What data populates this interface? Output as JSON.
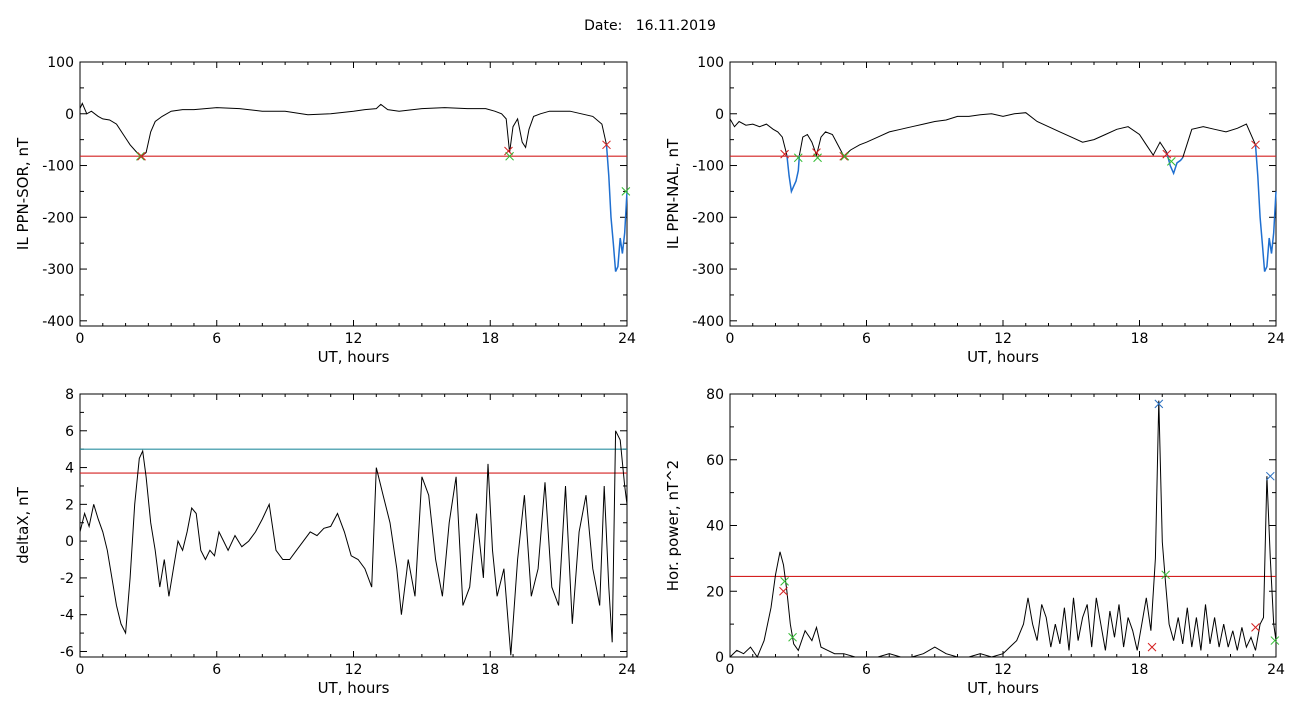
{
  "header": {
    "date_label": "Date:",
    "date_value": "16.11.2019"
  },
  "colors": {
    "trace": "#000000",
    "threshold_red": "#d42020",
    "threshold_teal": "#2a8fa0",
    "dip_blue": "#1f6fd0",
    "marker_green": "#33bb33",
    "marker_red": "#d42020",
    "marker_blue": "#2a70c0"
  },
  "chart_data": [
    {
      "type": "line",
      "ylabel": "IL PPN-SOR, nT",
      "xlabel": "UT, hours",
      "xlim": [
        0,
        24
      ],
      "ylim": [
        -410,
        100
      ],
      "xticks": [
        0,
        6,
        12,
        18,
        24
      ],
      "yticks": [
        100,
        0,
        -100,
        -200,
        -300,
        -400
      ],
      "grid": false,
      "hlines": [
        {
          "y": -82,
          "color": "red"
        }
      ],
      "series": [
        {
          "color": "black",
          "x": [
            0,
            0.1,
            0.3,
            0.5,
            0.8,
            1.0,
            1.3,
            1.6,
            1.9,
            2.2,
            2.5,
            2.7,
            2.9,
            3.1,
            3.3,
            3.6,
            4.0,
            4.5,
            5.0,
            6.0,
            7.0,
            8.0,
            9.0,
            10.0,
            11.0,
            12.0,
            12.5,
            13.0,
            13.2,
            13.5,
            14.0,
            15.0,
            16.0,
            17.0,
            17.8,
            18.2,
            18.5,
            18.7,
            18.85,
            19.0,
            19.2,
            19.4,
            19.55,
            19.7,
            19.9,
            20.2,
            20.6,
            21.0,
            21.5,
            22.0,
            22.5,
            22.9,
            23.1
          ],
          "y": [
            10,
            20,
            0,
            5,
            -5,
            -10,
            -12,
            -20,
            -40,
            -60,
            -75,
            -82,
            -75,
            -35,
            -15,
            -5,
            5,
            8,
            8,
            12,
            10,
            5,
            5,
            -2,
            0,
            5,
            8,
            10,
            18,
            8,
            5,
            10,
            12,
            10,
            10,
            5,
            0,
            -10,
            -75,
            -25,
            -10,
            -55,
            -65,
            -30,
            -5,
            0,
            5,
            5,
            5,
            0,
            -5,
            -20,
            -60
          ]
        },
        {
          "color": "blue",
          "x": [
            23.1,
            23.2,
            23.3,
            23.4,
            23.5,
            23.6,
            23.7,
            23.8,
            23.9,
            24.0
          ],
          "y": [
            -60,
            -120,
            -200,
            -250,
            -305,
            -295,
            -240,
            -270,
            -230,
            -150
          ]
        }
      ],
      "markers": [
        {
          "x": 2.65,
          "y": -82,
          "color": "green"
        },
        {
          "x": 2.7,
          "y": -82,
          "color": "red"
        },
        {
          "x": 18.8,
          "y": -72,
          "color": "red"
        },
        {
          "x": 18.85,
          "y": -82,
          "color": "green"
        },
        {
          "x": 23.1,
          "y": -60,
          "color": "red"
        },
        {
          "x": 23.95,
          "y": -150,
          "color": "green"
        }
      ]
    },
    {
      "type": "line",
      "ylabel": "IL PPN-NAL, nT",
      "xlabel": "UT, hours",
      "xlim": [
        0,
        24
      ],
      "ylim": [
        -410,
        100
      ],
      "xticks": [
        0,
        6,
        12,
        18,
        24
      ],
      "yticks": [
        100,
        0,
        -100,
        -200,
        -300,
        -400
      ],
      "grid": false,
      "hlines": [
        {
          "y": -82,
          "color": "red"
        }
      ],
      "series": [
        {
          "color": "black",
          "x": [
            0,
            0.2,
            0.4,
            0.7,
            1.0,
            1.3,
            1.6,
            1.9,
            2.1,
            2.3,
            2.5
          ],
          "y": [
            -10,
            -25,
            -15,
            -22,
            -20,
            -25,
            -20,
            -30,
            -35,
            -45,
            -80
          ]
        },
        {
          "color": "blue",
          "x": [
            2.5,
            2.6,
            2.7,
            2.8,
            2.9,
            3.0,
            3.05
          ],
          "y": [
            -80,
            -120,
            -150,
            -140,
            -130,
            -110,
            -80
          ]
        },
        {
          "color": "black",
          "x": [
            3.05,
            3.2,
            3.4,
            3.6,
            3.8,
            4.0,
            4.2,
            4.5,
            4.8,
            5.0,
            5.3,
            5.7,
            6.0,
            6.5,
            7.0,
            7.5,
            8.0,
            8.5,
            9.0,
            9.5,
            10.0,
            10.5,
            11.0,
            11.5,
            12.0,
            12.5,
            13.0,
            13.5,
            14.0,
            14.5,
            15.0,
            15.5,
            16.0,
            16.5,
            17.0,
            17.5,
            18.0,
            18.3,
            18.6,
            18.9,
            19.2
          ],
          "y": [
            -80,
            -45,
            -40,
            -55,
            -80,
            -45,
            -35,
            -40,
            -65,
            -82,
            -70,
            -60,
            -55,
            -45,
            -35,
            -30,
            -25,
            -20,
            -15,
            -12,
            -5,
            -5,
            -2,
            0,
            -5,
            0,
            2,
            -15,
            -25,
            -35,
            -45,
            -55,
            -50,
            -40,
            -30,
            -25,
            -40,
            -60,
            -80,
            -55,
            -75
          ]
        },
        {
          "color": "blue",
          "x": [
            19.2,
            19.35,
            19.5,
            19.65,
            19.8,
            19.9
          ],
          "y": [
            -75,
            -100,
            -115,
            -95,
            -90,
            -85
          ]
        },
        {
          "color": "black",
          "x": [
            19.9,
            20.3,
            20.8,
            21.3,
            21.8,
            22.3,
            22.7,
            23.1
          ],
          "y": [
            -85,
            -30,
            -25,
            -30,
            -35,
            -28,
            -20,
            -60
          ]
        },
        {
          "color": "blue",
          "x": [
            23.1,
            23.2,
            23.3,
            23.4,
            23.5,
            23.6,
            23.7,
            23.8,
            23.9,
            24.0
          ],
          "y": [
            -60,
            -120,
            -200,
            -250,
            -305,
            -295,
            -240,
            -270,
            -230,
            -150
          ]
        }
      ],
      "markers": [
        {
          "x": 2.4,
          "y": -78,
          "color": "red"
        },
        {
          "x": 3.0,
          "y": -85,
          "color": "green"
        },
        {
          "x": 3.8,
          "y": -75,
          "color": "red"
        },
        {
          "x": 3.85,
          "y": -85,
          "color": "green"
        },
        {
          "x": 5.0,
          "y": -82,
          "color": "red"
        },
        {
          "x": 5.05,
          "y": -82,
          "color": "green"
        },
        {
          "x": 19.2,
          "y": -78,
          "color": "red"
        },
        {
          "x": 19.4,
          "y": -92,
          "color": "green"
        },
        {
          "x": 23.1,
          "y": -60,
          "color": "red"
        }
      ]
    },
    {
      "type": "line",
      "ylabel": "deltaX, nT",
      "xlabel": "UT, hours",
      "xlim": [
        0,
        24
      ],
      "ylim": [
        -6.3,
        8
      ],
      "xticks": [
        0,
        6,
        12,
        18,
        24
      ],
      "yticks": [
        8,
        6,
        4,
        2,
        0,
        -2,
        -4,
        -6
      ],
      "grid": false,
      "hlines": [
        {
          "y": 5.0,
          "color": "teal"
        },
        {
          "y": 3.7,
          "color": "red"
        }
      ],
      "series": [
        {
          "color": "black",
          "x": [
            0,
            0.2,
            0.4,
            0.6,
            0.8,
            1.0,
            1.2,
            1.4,
            1.6,
            1.8,
            2.0,
            2.2,
            2.4,
            2.6,
            2.75,
            2.9,
            3.1,
            3.3,
            3.5,
            3.7,
            3.9,
            4.1,
            4.3,
            4.5,
            4.7,
            4.9,
            5.1,
            5.3,
            5.5,
            5.7,
            5.9,
            6.1,
            6.3,
            6.5,
            6.8,
            7.1,
            7.4,
            7.7,
            8.0,
            8.3,
            8.6,
            8.9,
            9.2,
            9.5,
            9.8,
            10.1,
            10.4,
            10.7,
            11.0,
            11.3,
            11.6,
            11.9,
            12.2,
            12.5,
            12.8,
            13.0,
            13.3,
            13.6,
            13.9,
            14.1,
            14.4,
            14.7,
            15.0,
            15.3,
            15.6,
            15.9,
            16.2,
            16.5,
            16.8,
            17.1,
            17.4,
            17.7,
            17.9,
            18.1,
            18.3,
            18.6,
            18.9,
            19.2,
            19.5,
            19.8,
            20.1,
            20.4,
            20.7,
            21.0,
            21.3,
            21.6,
            21.9,
            22.2,
            22.5,
            22.8,
            23.0,
            23.2,
            23.35,
            23.5,
            23.7,
            23.9,
            24.0
          ],
          "y": [
            0.5,
            1.5,
            0.8,
            2.0,
            1.2,
            0.5,
            -0.5,
            -2.0,
            -3.5,
            -4.5,
            -5.0,
            -2.0,
            2.0,
            4.5,
            4.9,
            3.5,
            1.0,
            -0.5,
            -2.5,
            -1.0,
            -3.0,
            -1.5,
            0.0,
            -0.5,
            0.5,
            1.8,
            1.5,
            -0.5,
            -1.0,
            -0.5,
            -0.8,
            0.5,
            0.0,
            -0.5,
            0.3,
            -0.3,
            0.0,
            0.5,
            1.2,
            2.0,
            -0.5,
            -1.0,
            -1.0,
            -0.5,
            0.0,
            0.5,
            0.3,
            0.7,
            0.8,
            1.5,
            0.5,
            -0.8,
            -1.0,
            -1.5,
            -2.5,
            4.0,
            2.5,
            1.0,
            -1.5,
            -4.0,
            -1.0,
            -3.0,
            3.5,
            2.5,
            -1.0,
            -3.0,
            1.0,
            3.5,
            -3.5,
            -2.5,
            1.5,
            -2.0,
            4.2,
            -0.5,
            -3.0,
            -1.5,
            -6.2,
            -1.0,
            2.5,
            -3.0,
            -1.5,
            3.2,
            -2.5,
            -3.5,
            3.0,
            -4.5,
            0.5,
            2.5,
            -1.5,
            -3.5,
            3.0,
            -2.5,
            -5.5,
            6.0,
            5.5,
            3.0,
            2.0
          ]
        }
      ],
      "markers": []
    },
    {
      "type": "line",
      "ylabel": "Hor. power, nT^2",
      "xlabel": "UT, hours",
      "xlim": [
        0,
        24
      ],
      "ylim": [
        0,
        80
      ],
      "xticks": [
        0,
        6,
        12,
        18,
        24
      ],
      "yticks": [
        80,
        60,
        40,
        20,
        0
      ],
      "grid": false,
      "hlines": [
        {
          "y": 24.5,
          "color": "red"
        }
      ],
      "series": [
        {
          "color": "black",
          "x": [
            0,
            0.3,
            0.6,
            0.9,
            1.2,
            1.5,
            1.8,
            2.0,
            2.2,
            2.35,
            2.5,
            2.65,
            2.8,
            3.0,
            3.3,
            3.6,
            3.8,
            4.0,
            4.3,
            4.6,
            5.0,
            5.5,
            6.0,
            6.5,
            7.0,
            7.5,
            8.0,
            8.5,
            9.0,
            9.5,
            10.0,
            10.5,
            11.0,
            11.5,
            12.0,
            12.3,
            12.6,
            12.9,
            13.1,
            13.3,
            13.5,
            13.7,
            13.9,
            14.1,
            14.3,
            14.5,
            14.7,
            14.9,
            15.1,
            15.3,
            15.5,
            15.7,
            15.9,
            16.1,
            16.3,
            16.5,
            16.7,
            16.9,
            17.1,
            17.3,
            17.5,
            17.7,
            17.9,
            18.1,
            18.3,
            18.5,
            18.7,
            18.85,
            19.0,
            19.15,
            19.3,
            19.5,
            19.7,
            19.9,
            20.1,
            20.3,
            20.5,
            20.7,
            20.9,
            21.1,
            21.3,
            21.5,
            21.7,
            21.9,
            22.1,
            22.3,
            22.5,
            22.7,
            22.9,
            23.1,
            23.3,
            23.45,
            23.6,
            23.75,
            23.9,
            24.0
          ],
          "y": [
            0,
            2,
            1,
            3,
            0,
            5,
            15,
            25,
            32,
            28,
            20,
            10,
            4,
            2,
            8,
            5,
            9,
            3,
            2,
            1,
            1,
            0,
            0,
            0,
            1,
            0,
            0,
            1,
            3,
            1,
            0,
            0,
            1,
            0,
            1,
            3,
            5,
            10,
            18,
            10,
            5,
            16,
            12,
            3,
            10,
            4,
            15,
            2,
            18,
            5,
            12,
            16,
            3,
            18,
            10,
            2,
            14,
            6,
            16,
            3,
            12,
            8,
            2,
            10,
            18,
            8,
            30,
            78,
            35,
            22,
            10,
            5,
            12,
            4,
            15,
            3,
            12,
            2,
            16,
            4,
            12,
            3,
            10,
            3,
            8,
            2,
            9,
            3,
            6,
            2,
            10,
            12,
            55,
            30,
            10,
            5
          ]
        }
      ],
      "markers": [
        {
          "x": 2.35,
          "y": 20,
          "color": "red"
        },
        {
          "x": 2.4,
          "y": 23,
          "color": "green"
        },
        {
          "x": 2.75,
          "y": 6,
          "color": "green"
        },
        {
          "x": 18.55,
          "y": 3,
          "color": "red"
        },
        {
          "x": 18.85,
          "y": 77,
          "color": "blue"
        },
        {
          "x": 19.15,
          "y": 25,
          "color": "green"
        },
        {
          "x": 23.1,
          "y": 9,
          "color": "red"
        },
        {
          "x": 23.75,
          "y": 55,
          "color": "blue"
        },
        {
          "x": 23.95,
          "y": 5,
          "color": "green"
        }
      ]
    }
  ]
}
